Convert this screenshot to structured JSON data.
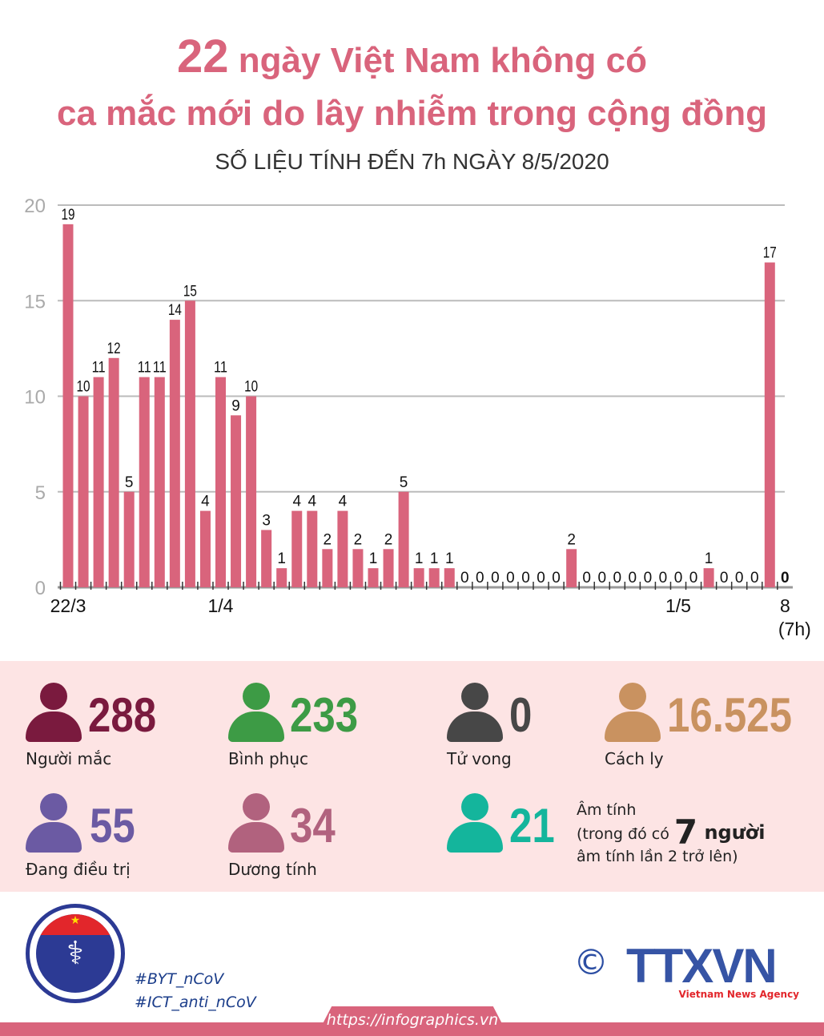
{
  "title": {
    "number": "22",
    "line1": "ngày Việt Nam không có",
    "line2": "ca mắc mới do lây nhiễm trong cộng đồng",
    "subtitle": "SỐ LIỆU TÍNH ĐẾN 7h NGÀY 8/5/2020"
  },
  "chart_data": {
    "type": "bar",
    "ylim": [
      0,
      20
    ],
    "yticks": [
      0,
      5,
      10,
      15,
      20
    ],
    "grid": true,
    "values": [
      19,
      10,
      11,
      12,
      5,
      11,
      11,
      14,
      15,
      4,
      11,
      9,
      10,
      3,
      1,
      4,
      4,
      2,
      4,
      2,
      1,
      2,
      5,
      1,
      1,
      1,
      0,
      0,
      0,
      0,
      0,
      0,
      0,
      2,
      0,
      0,
      0,
      0,
      0,
      0,
      0,
      0,
      1,
      0,
      0,
      0,
      17,
      0
    ],
    "xtick_labels": [
      {
        "index": 0,
        "label": "22/3"
      },
      {
        "index": 10,
        "label": "1/4"
      },
      {
        "index": 40,
        "label": "1/5"
      },
      {
        "index": 47,
        "label": "8",
        "sublabel": "(7h)"
      }
    ],
    "bar_color": "#d9647c"
  },
  "stats": [
    {
      "value": "288",
      "label": "Người mắc",
      "color": "#7a1a3e"
    },
    {
      "value": "233",
      "label": "Bình phục",
      "color": "#3d9b45"
    },
    {
      "value": "0",
      "label": "Tử vong",
      "color": "#474747"
    },
    {
      "value": "16.525",
      "label": "Cách ly",
      "color": "#c99260"
    },
    {
      "value": "55",
      "label": "Đang điều trị",
      "color": "#6b5aa3"
    },
    {
      "value": "34",
      "label": "Dương tính",
      "color": "#b1627e"
    },
    {
      "value": "21",
      "label": "",
      "color": "#14b59c"
    }
  ],
  "negative_note": {
    "line1": "Âm tính",
    "line2_pre": "(trong đó có ",
    "count": "7",
    "line2_post": " người",
    "line3": "âm tính lần 2 trở lên)"
  },
  "footer": {
    "tags": [
      "#BYT_nCoV",
      "#ICT_anti_nCoV"
    ],
    "url": "https://infographics.vn",
    "moh_logo": "BỘ Y TẾ MINISTRY OF HEALTH",
    "copyright": "©",
    "agency_logo": "TTXVN",
    "agency_sub": "Vietnam News Agency"
  }
}
